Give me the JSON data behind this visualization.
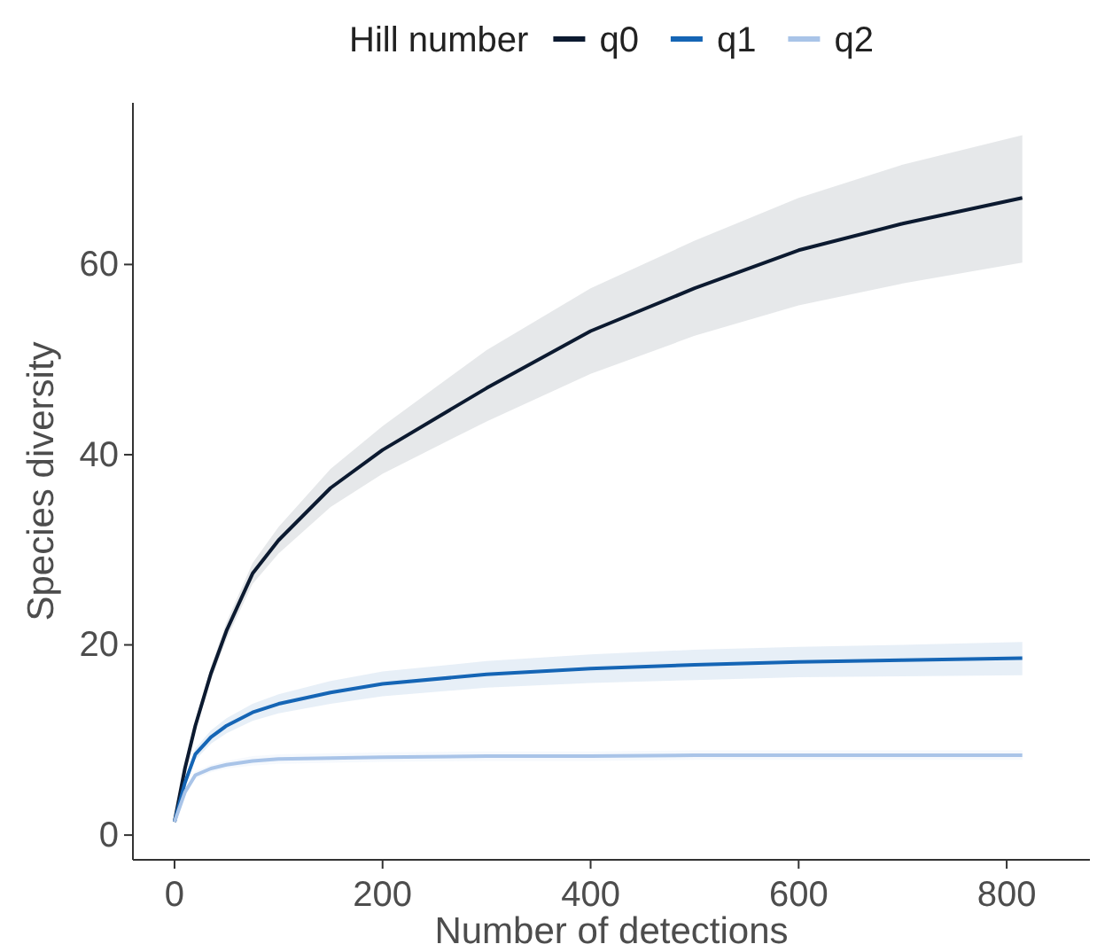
{
  "chart_data": {
    "type": "line",
    "xlabel": "Number of detections",
    "ylabel": "Species diversity",
    "legend_title": "Hill number",
    "legend": "top",
    "grid": false,
    "line_style": "solid",
    "marker": "none",
    "xlim": [
      -40,
      880
    ],
    "xticks": [
      0,
      200,
      400,
      600,
      800
    ],
    "ylim": [
      -2.6,
      77
    ],
    "yticks": [
      0,
      20,
      40,
      60
    ],
    "series": [
      {
        "name": "q0",
        "color": "#0c1a30",
        "x": [
          0,
          10,
          20,
          35,
          50,
          75,
          100,
          150,
          200,
          300,
          400,
          500,
          600,
          700,
          815
        ],
        "values": [
          1.4,
          7,
          11.5,
          17,
          21.5,
          27.5,
          31,
          36.5,
          40.5,
          47,
          53,
          57.5,
          61.5,
          64.3,
          67
        ],
        "lower": [
          1.2,
          6.5,
          11,
          16.3,
          20.6,
          26.4,
          29.6,
          34.5,
          38,
          43.5,
          48.5,
          52.5,
          55.7,
          58,
          60.2
        ],
        "upper": [
          1.6,
          7.5,
          12,
          17.7,
          22.4,
          28.6,
          32.4,
          38.5,
          43,
          51,
          57.5,
          62.5,
          67,
          70.5,
          73.6
        ]
      },
      {
        "name": "q1",
        "color": "#1565b5",
        "x": [
          0,
          10,
          20,
          35,
          50,
          75,
          100,
          150,
          200,
          300,
          400,
          500,
          600,
          700,
          815
        ],
        "values": [
          1.4,
          5.5,
          8.5,
          10.3,
          11.5,
          12.9,
          13.8,
          15,
          15.9,
          16.9,
          17.5,
          17.9,
          18.2,
          18.4,
          18.6
        ],
        "lower": [
          1.2,
          5.1,
          7.9,
          9.6,
          10.7,
          12,
          12.8,
          13.8,
          14.6,
          15.5,
          16,
          16.3,
          16.6,
          16.7,
          16.8
        ],
        "upper": [
          1.6,
          5.9,
          9.1,
          11,
          12.3,
          13.8,
          14.8,
          16.2,
          17.2,
          18.3,
          19,
          19.5,
          19.8,
          20,
          20.3
        ]
      },
      {
        "name": "q2",
        "color": "#a9c4e8",
        "x": [
          0,
          10,
          20,
          35,
          50,
          75,
          100,
          150,
          200,
          300,
          400,
          500,
          600,
          700,
          815
        ],
        "values": [
          1.4,
          4.5,
          6.3,
          7,
          7.4,
          7.8,
          8,
          8.1,
          8.2,
          8.3,
          8.3,
          8.4,
          8.4,
          8.4,
          8.4
        ],
        "lower": [
          1.2,
          4.2,
          5.9,
          6.6,
          7,
          7.3,
          7.5,
          7.6,
          7.7,
          7.8,
          7.8,
          7.9,
          7.9,
          7.9,
          7.9
        ],
        "upper": [
          1.6,
          4.8,
          6.7,
          7.4,
          7.8,
          8.3,
          8.5,
          8.6,
          8.7,
          8.8,
          8.8,
          8.9,
          8.9,
          8.9,
          8.9
        ]
      }
    ]
  }
}
